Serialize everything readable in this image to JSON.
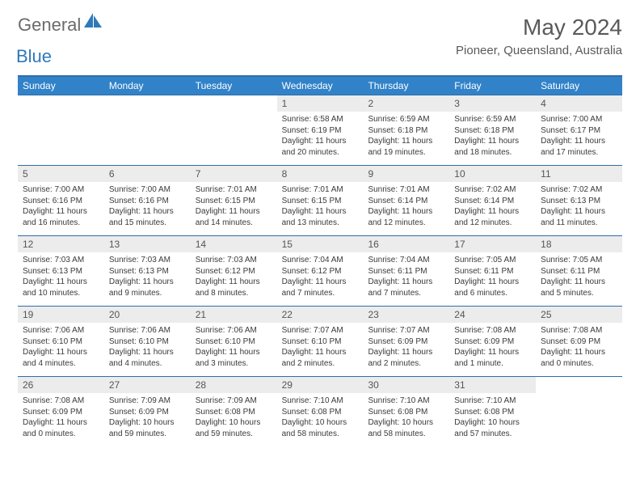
{
  "logo": {
    "text_general": "General",
    "text_blue": "Blue",
    "shape_color": "#2f79b8"
  },
  "title": {
    "month": "May 2024",
    "location": "Pioneer, Queensland, Australia"
  },
  "colors": {
    "header_bg": "#3182c8",
    "header_border": "#2f6ea8",
    "daynum_bg": "#ececec",
    "text_muted": "#5a5a5a",
    "text_body": "#3a3a3a"
  },
  "weekdays": [
    "Sunday",
    "Monday",
    "Tuesday",
    "Wednesday",
    "Thursday",
    "Friday",
    "Saturday"
  ],
  "weeks": [
    [
      {
        "empty": true
      },
      {
        "empty": true
      },
      {
        "empty": true
      },
      {
        "day": "1",
        "sunrise": "Sunrise: 6:58 AM",
        "sunset": "Sunset: 6:19 PM",
        "daylight1": "Daylight: 11 hours",
        "daylight2": "and 20 minutes."
      },
      {
        "day": "2",
        "sunrise": "Sunrise: 6:59 AM",
        "sunset": "Sunset: 6:18 PM",
        "daylight1": "Daylight: 11 hours",
        "daylight2": "and 19 minutes."
      },
      {
        "day": "3",
        "sunrise": "Sunrise: 6:59 AM",
        "sunset": "Sunset: 6:18 PM",
        "daylight1": "Daylight: 11 hours",
        "daylight2": "and 18 minutes."
      },
      {
        "day": "4",
        "sunrise": "Sunrise: 7:00 AM",
        "sunset": "Sunset: 6:17 PM",
        "daylight1": "Daylight: 11 hours",
        "daylight2": "and 17 minutes."
      }
    ],
    [
      {
        "day": "5",
        "sunrise": "Sunrise: 7:00 AM",
        "sunset": "Sunset: 6:16 PM",
        "daylight1": "Daylight: 11 hours",
        "daylight2": "and 16 minutes."
      },
      {
        "day": "6",
        "sunrise": "Sunrise: 7:00 AM",
        "sunset": "Sunset: 6:16 PM",
        "daylight1": "Daylight: 11 hours",
        "daylight2": "and 15 minutes."
      },
      {
        "day": "7",
        "sunrise": "Sunrise: 7:01 AM",
        "sunset": "Sunset: 6:15 PM",
        "daylight1": "Daylight: 11 hours",
        "daylight2": "and 14 minutes."
      },
      {
        "day": "8",
        "sunrise": "Sunrise: 7:01 AM",
        "sunset": "Sunset: 6:15 PM",
        "daylight1": "Daylight: 11 hours",
        "daylight2": "and 13 minutes."
      },
      {
        "day": "9",
        "sunrise": "Sunrise: 7:01 AM",
        "sunset": "Sunset: 6:14 PM",
        "daylight1": "Daylight: 11 hours",
        "daylight2": "and 12 minutes."
      },
      {
        "day": "10",
        "sunrise": "Sunrise: 7:02 AM",
        "sunset": "Sunset: 6:14 PM",
        "daylight1": "Daylight: 11 hours",
        "daylight2": "and 12 minutes."
      },
      {
        "day": "11",
        "sunrise": "Sunrise: 7:02 AM",
        "sunset": "Sunset: 6:13 PM",
        "daylight1": "Daylight: 11 hours",
        "daylight2": "and 11 minutes."
      }
    ],
    [
      {
        "day": "12",
        "sunrise": "Sunrise: 7:03 AM",
        "sunset": "Sunset: 6:13 PM",
        "daylight1": "Daylight: 11 hours",
        "daylight2": "and 10 minutes."
      },
      {
        "day": "13",
        "sunrise": "Sunrise: 7:03 AM",
        "sunset": "Sunset: 6:13 PM",
        "daylight1": "Daylight: 11 hours",
        "daylight2": "and 9 minutes."
      },
      {
        "day": "14",
        "sunrise": "Sunrise: 7:03 AM",
        "sunset": "Sunset: 6:12 PM",
        "daylight1": "Daylight: 11 hours",
        "daylight2": "and 8 minutes."
      },
      {
        "day": "15",
        "sunrise": "Sunrise: 7:04 AM",
        "sunset": "Sunset: 6:12 PM",
        "daylight1": "Daylight: 11 hours",
        "daylight2": "and 7 minutes."
      },
      {
        "day": "16",
        "sunrise": "Sunrise: 7:04 AM",
        "sunset": "Sunset: 6:11 PM",
        "daylight1": "Daylight: 11 hours",
        "daylight2": "and 7 minutes."
      },
      {
        "day": "17",
        "sunrise": "Sunrise: 7:05 AM",
        "sunset": "Sunset: 6:11 PM",
        "daylight1": "Daylight: 11 hours",
        "daylight2": "and 6 minutes."
      },
      {
        "day": "18",
        "sunrise": "Sunrise: 7:05 AM",
        "sunset": "Sunset: 6:11 PM",
        "daylight1": "Daylight: 11 hours",
        "daylight2": "and 5 minutes."
      }
    ],
    [
      {
        "day": "19",
        "sunrise": "Sunrise: 7:06 AM",
        "sunset": "Sunset: 6:10 PM",
        "daylight1": "Daylight: 11 hours",
        "daylight2": "and 4 minutes."
      },
      {
        "day": "20",
        "sunrise": "Sunrise: 7:06 AM",
        "sunset": "Sunset: 6:10 PM",
        "daylight1": "Daylight: 11 hours",
        "daylight2": "and 4 minutes."
      },
      {
        "day": "21",
        "sunrise": "Sunrise: 7:06 AM",
        "sunset": "Sunset: 6:10 PM",
        "daylight1": "Daylight: 11 hours",
        "daylight2": "and 3 minutes."
      },
      {
        "day": "22",
        "sunrise": "Sunrise: 7:07 AM",
        "sunset": "Sunset: 6:10 PM",
        "daylight1": "Daylight: 11 hours",
        "daylight2": "and 2 minutes."
      },
      {
        "day": "23",
        "sunrise": "Sunrise: 7:07 AM",
        "sunset": "Sunset: 6:09 PM",
        "daylight1": "Daylight: 11 hours",
        "daylight2": "and 2 minutes."
      },
      {
        "day": "24",
        "sunrise": "Sunrise: 7:08 AM",
        "sunset": "Sunset: 6:09 PM",
        "daylight1": "Daylight: 11 hours",
        "daylight2": "and 1 minute."
      },
      {
        "day": "25",
        "sunrise": "Sunrise: 7:08 AM",
        "sunset": "Sunset: 6:09 PM",
        "daylight1": "Daylight: 11 hours",
        "daylight2": "and 0 minutes."
      }
    ],
    [
      {
        "day": "26",
        "sunrise": "Sunrise: 7:08 AM",
        "sunset": "Sunset: 6:09 PM",
        "daylight1": "Daylight: 11 hours",
        "daylight2": "and 0 minutes."
      },
      {
        "day": "27",
        "sunrise": "Sunrise: 7:09 AM",
        "sunset": "Sunset: 6:09 PM",
        "daylight1": "Daylight: 10 hours",
        "daylight2": "and 59 minutes."
      },
      {
        "day": "28",
        "sunrise": "Sunrise: 7:09 AM",
        "sunset": "Sunset: 6:08 PM",
        "daylight1": "Daylight: 10 hours",
        "daylight2": "and 59 minutes."
      },
      {
        "day": "29",
        "sunrise": "Sunrise: 7:10 AM",
        "sunset": "Sunset: 6:08 PM",
        "daylight1": "Daylight: 10 hours",
        "daylight2": "and 58 minutes."
      },
      {
        "day": "30",
        "sunrise": "Sunrise: 7:10 AM",
        "sunset": "Sunset: 6:08 PM",
        "daylight1": "Daylight: 10 hours",
        "daylight2": "and 58 minutes."
      },
      {
        "day": "31",
        "sunrise": "Sunrise: 7:10 AM",
        "sunset": "Sunset: 6:08 PM",
        "daylight1": "Daylight: 10 hours",
        "daylight2": "and 57 minutes."
      },
      {
        "empty": true
      }
    ]
  ]
}
